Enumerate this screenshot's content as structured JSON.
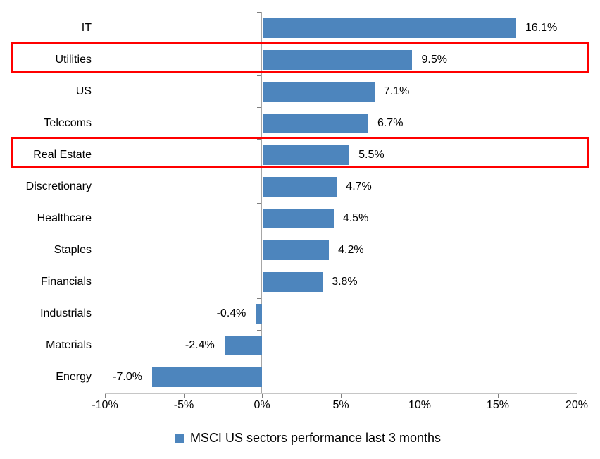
{
  "chart_data": {
    "type": "bar",
    "orientation": "horizontal",
    "title": "",
    "categories": [
      "IT",
      "Utilities",
      "US",
      "Telecoms",
      "Real Estate",
      "Discretionary",
      "Healthcare",
      "Staples",
      "Financials",
      "Industrials",
      "Materials",
      "Energy"
    ],
    "values": [
      16.1,
      9.5,
      7.1,
      6.7,
      5.5,
      4.7,
      4.5,
      4.2,
      3.8,
      -0.4,
      -2.4,
      -7.0
    ],
    "data_labels": [
      "16.1%",
      "9.5%",
      "7.1%",
      "6.7%",
      "5.5%",
      "4.7%",
      "4.5%",
      "4.2%",
      "3.8%",
      "-0.4%",
      "-2.4%",
      "-7.0%"
    ],
    "xlim": [
      -10,
      20
    ],
    "x_tick_values": [
      -10,
      -5,
      0,
      5,
      10,
      15,
      20
    ],
    "x_tick_labels": [
      "-10%",
      "-5%",
      "0%",
      "5%",
      "10%",
      "15%",
      "20%"
    ],
    "grid": false,
    "legend_position": "bottom",
    "legend": [
      {
        "label": "MSCI US sectors performance last 3 months",
        "marker_color": "#4d85bd"
      }
    ],
    "bar_color": "#4d85bd",
    "highlighted_categories": [
      "Utilities",
      "Real Estate"
    ],
    "highlight_color": "#ff0000",
    "value_axis_line_color": "#c6c6c6",
    "category_axis_line_color": "#a6a6a6",
    "tick_color": "#7f7f7f",
    "text_color": "#000000"
  }
}
